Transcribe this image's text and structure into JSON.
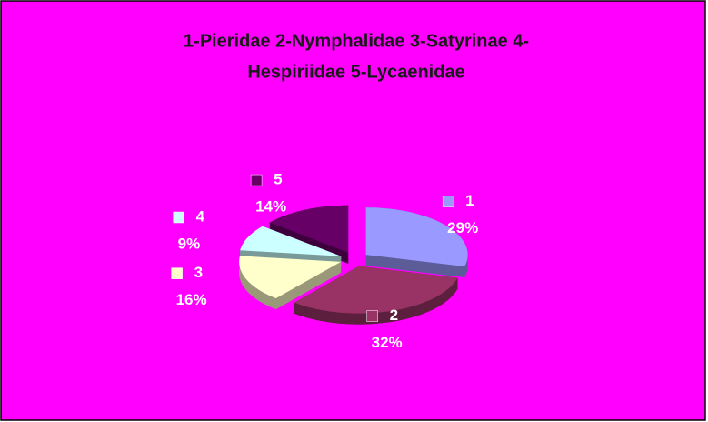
{
  "chart_data": {
    "type": "pie",
    "title": [
      "1-Pieridae 2-Nymphalidae 3-Satyrinae 4-",
      "Hespiriidae 5-Lycaenidae"
    ],
    "categories": [
      "1",
      "2",
      "3",
      "4",
      "5"
    ],
    "values": [
      29,
      32,
      16,
      9,
      14
    ],
    "value_labels": [
      "29%",
      "32%",
      "16%",
      "9%",
      "14%"
    ],
    "colors": [
      "#9999ff",
      "#993366",
      "#ffffcc",
      "#ccffff",
      "#660066"
    ],
    "background": "#ff00ff"
  }
}
